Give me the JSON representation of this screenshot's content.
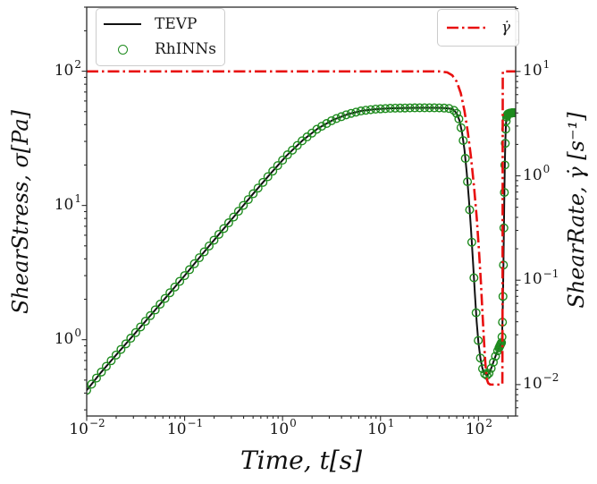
{
  "colors": {
    "tevp_line": "#111111",
    "rhinns_marker": "#1e8b1e",
    "shear_rate_line": "#e81010",
    "axis": "#2b2b2b",
    "tick_text": "#141414",
    "legend_border": "#cccccc",
    "background": "#ffffff"
  },
  "legend_left": {
    "items": [
      {
        "label": "TEVP",
        "marker": "line"
      },
      {
        "label": "RhINNs",
        "marker": "circle"
      }
    ]
  },
  "legend_right": {
    "items": [
      {
        "label": "γ̇",
        "marker": "dashdot"
      }
    ]
  },
  "chart_data": {
    "type": "line",
    "title": "",
    "xlabel": "Time, t[s]",
    "ylabel_left": "ShearStress, σ[Pa]",
    "ylabel_right": "ShearRate, γ̇ [s⁻¹]",
    "x_scale": "log",
    "y_scale_left": "log",
    "y_scale_right": "log",
    "xlim": [
      0.01,
      240
    ],
    "ylim_left": [
      0.27,
      300
    ],
    "ylim_right": [
      0.005,
      41.3
    ],
    "grid": false,
    "legend_positions": [
      "upper left",
      "upper right"
    ],
    "x_ticks": [
      {
        "v": 0.01,
        "m": "10",
        "e": "−2"
      },
      {
        "v": 0.1,
        "m": "10",
        "e": "−1"
      },
      {
        "v": 1,
        "m": "10",
        "e": "0"
      },
      {
        "v": 10,
        "m": "10",
        "e": "1"
      },
      {
        "v": 100,
        "m": "10",
        "e": "2"
      }
    ],
    "y_ticks_left": [
      {
        "v": 1,
        "m": "10",
        "e": "0"
      },
      {
        "v": 10,
        "m": "10",
        "e": "1"
      },
      {
        "v": 100,
        "m": "10",
        "e": "2"
      }
    ],
    "y_ticks_right": [
      {
        "v": 0.01,
        "m": "10",
        "e": "−2"
      },
      {
        "v": 0.1,
        "m": "10",
        "e": "−1"
      },
      {
        "v": 1,
        "m": "10",
        "e": "0"
      },
      {
        "v": 10,
        "m": "10",
        "e": "1"
      }
    ],
    "series": [
      {
        "name": "TEVP",
        "axis": "left",
        "style": "line",
        "color": "#111111",
        "points": [
          [
            0.01,
            0.42
          ],
          [
            0.014,
            0.57
          ],
          [
            0.02,
            0.77
          ],
          [
            0.03,
            1.08
          ],
          [
            0.045,
            1.52
          ],
          [
            0.065,
            2.08
          ],
          [
            0.1,
            3.0
          ],
          [
            0.15,
            4.3
          ],
          [
            0.22,
            6.0
          ],
          [
            0.33,
            8.5
          ],
          [
            0.5,
            12.2
          ],
          [
            0.75,
            17.2
          ],
          [
            1.1,
            23.5
          ],
          [
            1.6,
            30.5
          ],
          [
            2.3,
            37.5
          ],
          [
            3.3,
            43.5
          ],
          [
            4.7,
            48.0
          ],
          [
            6.5,
            50.8
          ],
          [
            9,
            52.2
          ],
          [
            13,
            53.0
          ],
          [
            20,
            53.3
          ],
          [
            30,
            53.4
          ],
          [
            42,
            53.3
          ],
          [
            50,
            52.8
          ],
          [
            55,
            52.0
          ],
          [
            60,
            48.5
          ],
          [
            64,
            43.0
          ],
          [
            68,
            35.0
          ],
          [
            72,
            26.0
          ],
          [
            76,
            17.5
          ],
          [
            80,
            11.0
          ],
          [
            84,
            6.6
          ],
          [
            88,
            3.8
          ],
          [
            92,
            2.2
          ],
          [
            96,
            1.35
          ],
          [
            100,
            0.95
          ],
          [
            105,
            0.72
          ],
          [
            110,
            0.61
          ],
          [
            115,
            0.56
          ],
          [
            121,
            0.54
          ],
          [
            128,
            0.56
          ],
          [
            136,
            0.62
          ],
          [
            144,
            0.7
          ],
          [
            153,
            0.79
          ],
          [
            161,
            0.86
          ],
          [
            168,
            0.92
          ],
          [
            172,
            0.95
          ],
          [
            174,
            1.05
          ],
          [
            176,
            1.35
          ],
          [
            178,
            2.1
          ],
          [
            180,
            3.6
          ],
          [
            182,
            6.8
          ],
          [
            184,
            12.5
          ],
          [
            186,
            20.0
          ],
          [
            188,
            29.0
          ],
          [
            190,
            37.0
          ],
          [
            192,
            42.5
          ],
          [
            194,
            45.5
          ],
          [
            197,
            47.3
          ],
          [
            200,
            48.0
          ],
          [
            210,
            48.7
          ],
          [
            225,
            49.0
          ],
          [
            240,
            49.1
          ]
        ]
      },
      {
        "name": "RhINNs",
        "axis": "left",
        "style": "circles",
        "color": "#1e8b1e",
        "source": "TEVP",
        "marker_plan": {
          "segments": [
            {
              "from": 0.01,
              "to": 60,
              "log_step": 0.05
            },
            {
              "from": 60,
              "to": 160,
              "log_step": 0.022
            },
            {
              "from": 162,
              "to": 240,
              "step": 2
            }
          ]
        }
      },
      {
        "name": "γ̇",
        "axis": "right",
        "style": "dashdot",
        "color": "#e81010",
        "points": [
          [
            0.01,
            10
          ],
          [
            40,
            10
          ],
          [
            48,
            9.8
          ],
          [
            54,
            9.2
          ],
          [
            60,
            8.0
          ],
          [
            66,
            6.2
          ],
          [
            72,
            4.2
          ],
          [
            78,
            2.6
          ],
          [
            84,
            1.5
          ],
          [
            90,
            0.8
          ],
          [
            96,
            0.4
          ],
          [
            101,
            0.2
          ],
          [
            106,
            0.095
          ],
          [
            110,
            0.048
          ],
          [
            114,
            0.026
          ],
          [
            118,
            0.0155
          ],
          [
            122,
            0.0112
          ],
          [
            126,
            0.0103
          ],
          [
            132,
            0.01
          ],
          [
            174,
            0.01
          ],
          [
            175.5,
            0.0102
          ],
          [
            176.2,
            0.05
          ],
          [
            176.8,
            2
          ],
          [
            177.2,
            9
          ],
          [
            177.6,
            10
          ],
          [
            240,
            10
          ]
        ]
      }
    ]
  }
}
